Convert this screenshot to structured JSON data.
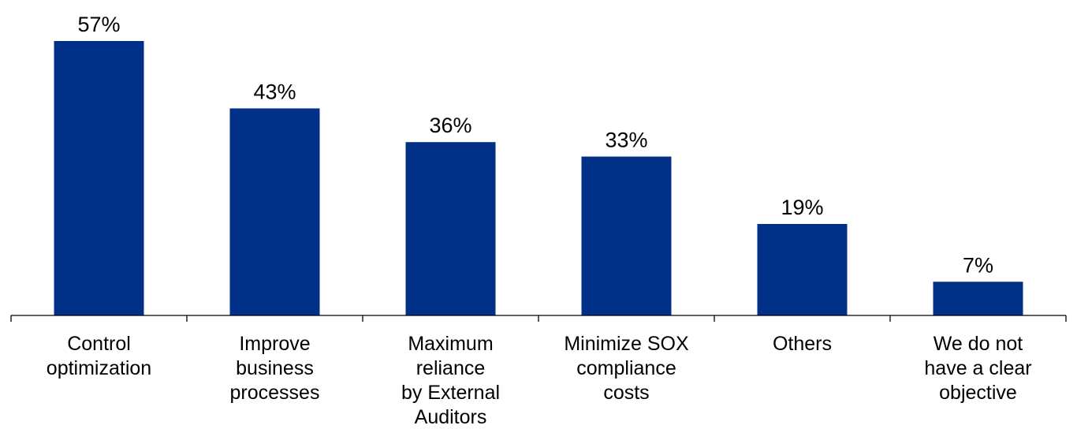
{
  "chart_data": {
    "type": "bar",
    "title": "",
    "xlabel": "",
    "ylabel": "",
    "ylim": [
      0,
      57
    ],
    "grid": false,
    "bar_color": "#003087",
    "value_suffix": "%",
    "categories": [
      [
        "Control",
        "optimization"
      ],
      [
        "Improve",
        "business",
        "processes"
      ],
      [
        "Maximum",
        "reliance",
        "by External",
        "Auditors"
      ],
      [
        "Minimize SOX",
        "compliance",
        "costs"
      ],
      [
        "Others"
      ],
      [
        "We do not",
        "have a clear",
        "objective"
      ]
    ],
    "values": [
      57,
      43,
      36,
      33,
      19,
      7
    ]
  }
}
